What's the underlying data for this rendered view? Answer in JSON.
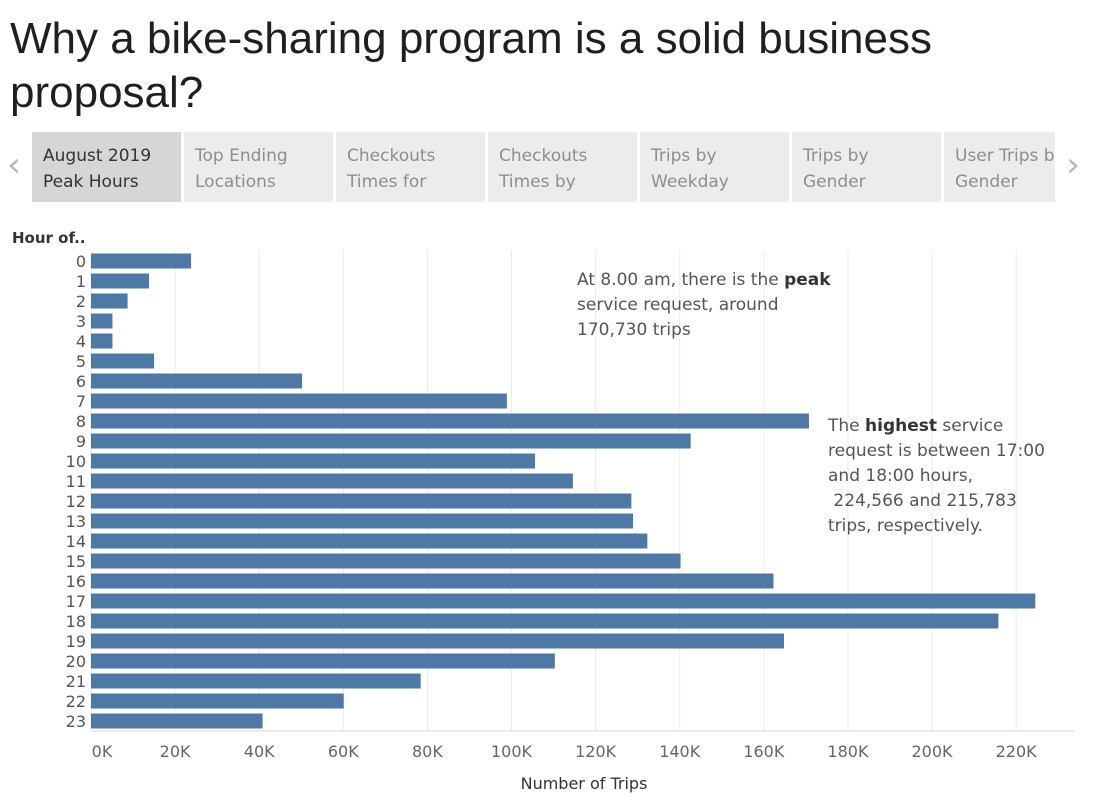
{
  "title": "Why a bike-sharing program is a solid business proposal?",
  "nav": {
    "prev_icon": "‹",
    "next_icon": "›"
  },
  "tabs": [
    {
      "line1": "August 2019",
      "line2": "Peak Hours",
      "active": true
    },
    {
      "line1": "Top Ending",
      "line2": "Locations",
      "active": false
    },
    {
      "line1": "Checkouts",
      "line2": "Times for",
      "active": false
    },
    {
      "line1": "Checkouts",
      "line2": "Times by",
      "active": false
    },
    {
      "line1": "Trips by",
      "line2": "Weekday",
      "active": false
    },
    {
      "line1": "Trips by",
      "line2": "Gender",
      "active": false
    },
    {
      "line1": "User Trips by",
      "line2": "Gender",
      "active": false
    }
  ],
  "annotations": {
    "peak": {
      "line1_pre": "At 8.00 am, there is the ",
      "line1_bold": "peak",
      "line2": "service request, around",
      "line3": "170,730 trips"
    },
    "highest": {
      "line1_pre": "The ",
      "line1_bold": "highest",
      "line1_post": " service",
      "line2": "request is between 17:00",
      "line3": "and 18:00 hours,",
      "line4": " 224,566 and 215,783",
      "line5": "trips, respectively."
    }
  },
  "colors": {
    "bar": "#4e79a7",
    "grid": "#ebebeb",
    "axis_text": "#666666"
  },
  "chart_data": {
    "type": "bar",
    "orientation": "horizontal",
    "ylabel": "Hour of..",
    "xlabel": "Number of Trips",
    "categories": [
      "0",
      "1",
      "2",
      "3",
      "4",
      "5",
      "6",
      "7",
      "8",
      "9",
      "10",
      "11",
      "12",
      "13",
      "14",
      "15",
      "16",
      "17",
      "18",
      "19",
      "20",
      "21",
      "22",
      "23"
    ],
    "values": [
      23800,
      13800,
      8700,
      5100,
      5100,
      15000,
      50200,
      98900,
      170730,
      142600,
      105600,
      114600,
      128500,
      128900,
      132300,
      140200,
      162300,
      224566,
      215783,
      164800,
      110300,
      78400,
      60100,
      40800
    ],
    "xlim": [
      0,
      234000
    ],
    "xticks": [
      0,
      20000,
      40000,
      60000,
      80000,
      100000,
      120000,
      140000,
      160000,
      180000,
      200000,
      220000
    ],
    "xtick_labels": [
      "0K",
      "20K",
      "40K",
      "60K",
      "80K",
      "100K",
      "120K",
      "140K",
      "160K",
      "180K",
      "200K",
      "220K"
    ],
    "grid": "vertical"
  }
}
